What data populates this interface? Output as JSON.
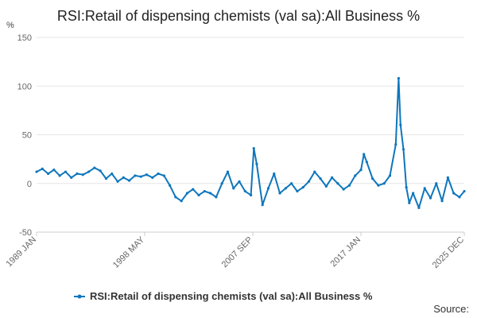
{
  "title": "RSI:Retail of dispensing chemists (val sa):All Business %",
  "source_label": "Source:",
  "chart_data": {
    "type": "line",
    "title": "RSI:Retail of dispensing chemists (val sa):All Business %",
    "ylabel": "%",
    "xlabel": "",
    "ylim": [
      -50,
      150
    ],
    "yticks": [
      -50,
      0,
      50,
      100,
      150
    ],
    "x_start": "1989 JAN",
    "x_end": "2025 DEC",
    "xticks": [
      "1989 JAN",
      "1998 MAY",
      "2007 SEP",
      "2017 JAN",
      "2025 DEC"
    ],
    "grid": "horizontal",
    "legend_position": "bottom",
    "color": "#0e76bc",
    "series": [
      {
        "name": "RSI:Retail of dispensing chemists (val sa):All Business %",
        "x": [
          "1989-01",
          "1989-07",
          "1990-01",
          "1990-07",
          "1991-01",
          "1991-07",
          "1992-01",
          "1992-07",
          "1993-01",
          "1993-07",
          "1994-01",
          "1994-07",
          "1995-01",
          "1995-07",
          "1996-01",
          "1996-07",
          "1997-01",
          "1997-07",
          "1998-01",
          "1998-07",
          "1999-01",
          "1999-07",
          "2000-01",
          "2000-07",
          "2001-01",
          "2001-07",
          "2002-01",
          "2002-07",
          "2003-01",
          "2003-07",
          "2004-01",
          "2004-07",
          "2005-01",
          "2005-07",
          "2006-01",
          "2006-07",
          "2007-01",
          "2007-07",
          "2007-10",
          "2008-01",
          "2008-07",
          "2009-01",
          "2009-07",
          "2010-01",
          "2010-07",
          "2011-01",
          "2011-07",
          "2012-01",
          "2012-07",
          "2013-01",
          "2013-07",
          "2014-01",
          "2014-07",
          "2015-01",
          "2015-07",
          "2016-01",
          "2016-07",
          "2017-01",
          "2017-04",
          "2017-07",
          "2018-01",
          "2018-07",
          "2019-01",
          "2019-07",
          "2020-01",
          "2020-04",
          "2020-06",
          "2020-09",
          "2020-12",
          "2021-03",
          "2021-07",
          "2022-01",
          "2022-07",
          "2023-01",
          "2023-07",
          "2024-01",
          "2024-07",
          "2025-01",
          "2025-07",
          "2025-12"
        ],
        "y": [
          12,
          15,
          10,
          14,
          8,
          12,
          6,
          10,
          9,
          12,
          16,
          13,
          5,
          10,
          2,
          6,
          3,
          8,
          7,
          9,
          6,
          10,
          8,
          -2,
          -14,
          -18,
          -10,
          -6,
          -12,
          -8,
          -10,
          -14,
          0,
          12,
          -5,
          2,
          -8,
          -12,
          36,
          20,
          -22,
          -5,
          10,
          -10,
          -5,
          0,
          -8,
          -4,
          2,
          12,
          5,
          -3,
          6,
          0,
          -6,
          -2,
          8,
          14,
          30,
          22,
          5,
          -2,
          0,
          8,
          40,
          108,
          60,
          35,
          -4,
          -20,
          -10,
          -25,
          -5,
          -15,
          0,
          -18,
          6,
          -10,
          -14,
          -8
        ]
      }
    ]
  }
}
